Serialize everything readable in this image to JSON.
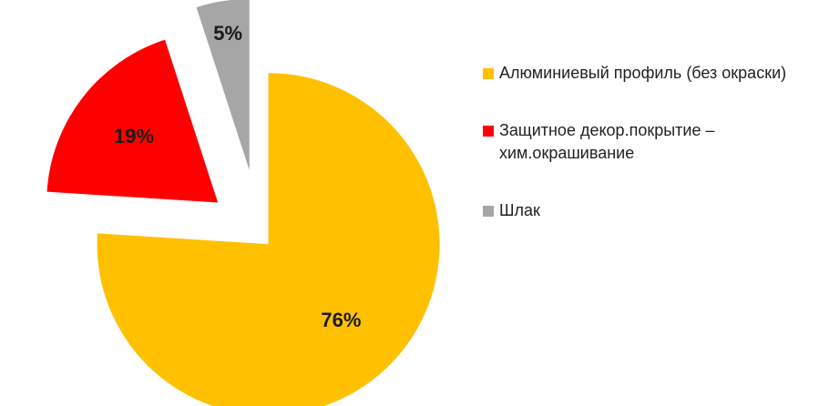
{
  "chart_data": {
    "type": "pie",
    "categories": [
      "Алюминиевый профиль (без окраски)",
      "Защитное декор.покрытие – хим.окрашивание",
      "Шлак"
    ],
    "values": [
      76,
      19,
      5
    ],
    "value_labels": [
      "76%",
      "19%",
      "5%"
    ],
    "colors": [
      "#ffc000",
      "#ff0000",
      "#a6a6a6"
    ],
    "legend": "right"
  }
}
